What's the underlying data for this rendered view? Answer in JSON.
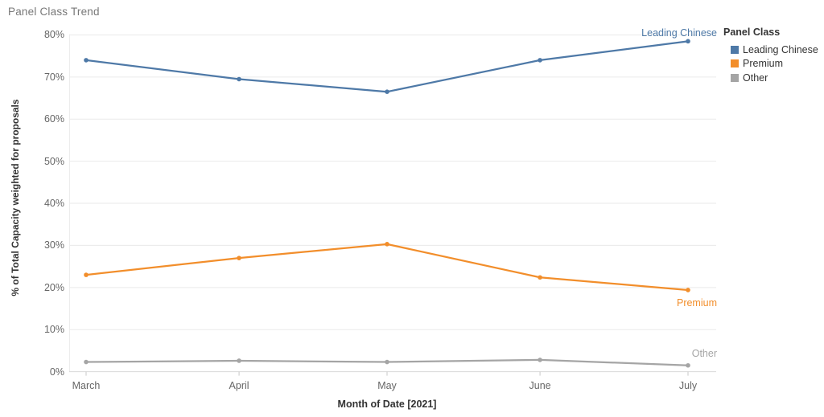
{
  "title": "Panel Class Trend",
  "legend": {
    "title": "Panel Class"
  },
  "chart_data": {
    "type": "line",
    "title": "Panel Class Trend",
    "categories": [
      "March",
      "April",
      "May",
      "June",
      "July"
    ],
    "series": [
      {
        "name": "Leading Chinese",
        "color": "#4e79a7",
        "values": [
          74.0,
          69.5,
          66.5,
          74.0,
          78.5
        ]
      },
      {
        "name": "Premium",
        "color": "#f28e2b",
        "values": [
          23.0,
          27.0,
          30.3,
          22.4,
          19.4
        ]
      },
      {
        "name": "Other",
        "color": "#a5a5a5",
        "values": [
          2.3,
          2.6,
          2.3,
          2.8,
          1.5
        ]
      }
    ],
    "xlabel": "Month of Date [2021]",
    "ylabel": "% of Total Capacity weighted for proposals",
    "ylim": [
      0,
      80
    ],
    "y_ticks": [
      "0%",
      "10%",
      "20%",
      "30%",
      "40%",
      "50%",
      "60%",
      "70%",
      "80%"
    ],
    "grid": "horizontal",
    "legend_position": "right",
    "colors": {
      "gridline": "#eaeaea",
      "axis_line": "#d8d8d8",
      "tick_mark": "#c9c9c9",
      "tick_text": "#666666",
      "axis_title_text": "#333333",
      "chart_title_text": "#787878"
    }
  }
}
